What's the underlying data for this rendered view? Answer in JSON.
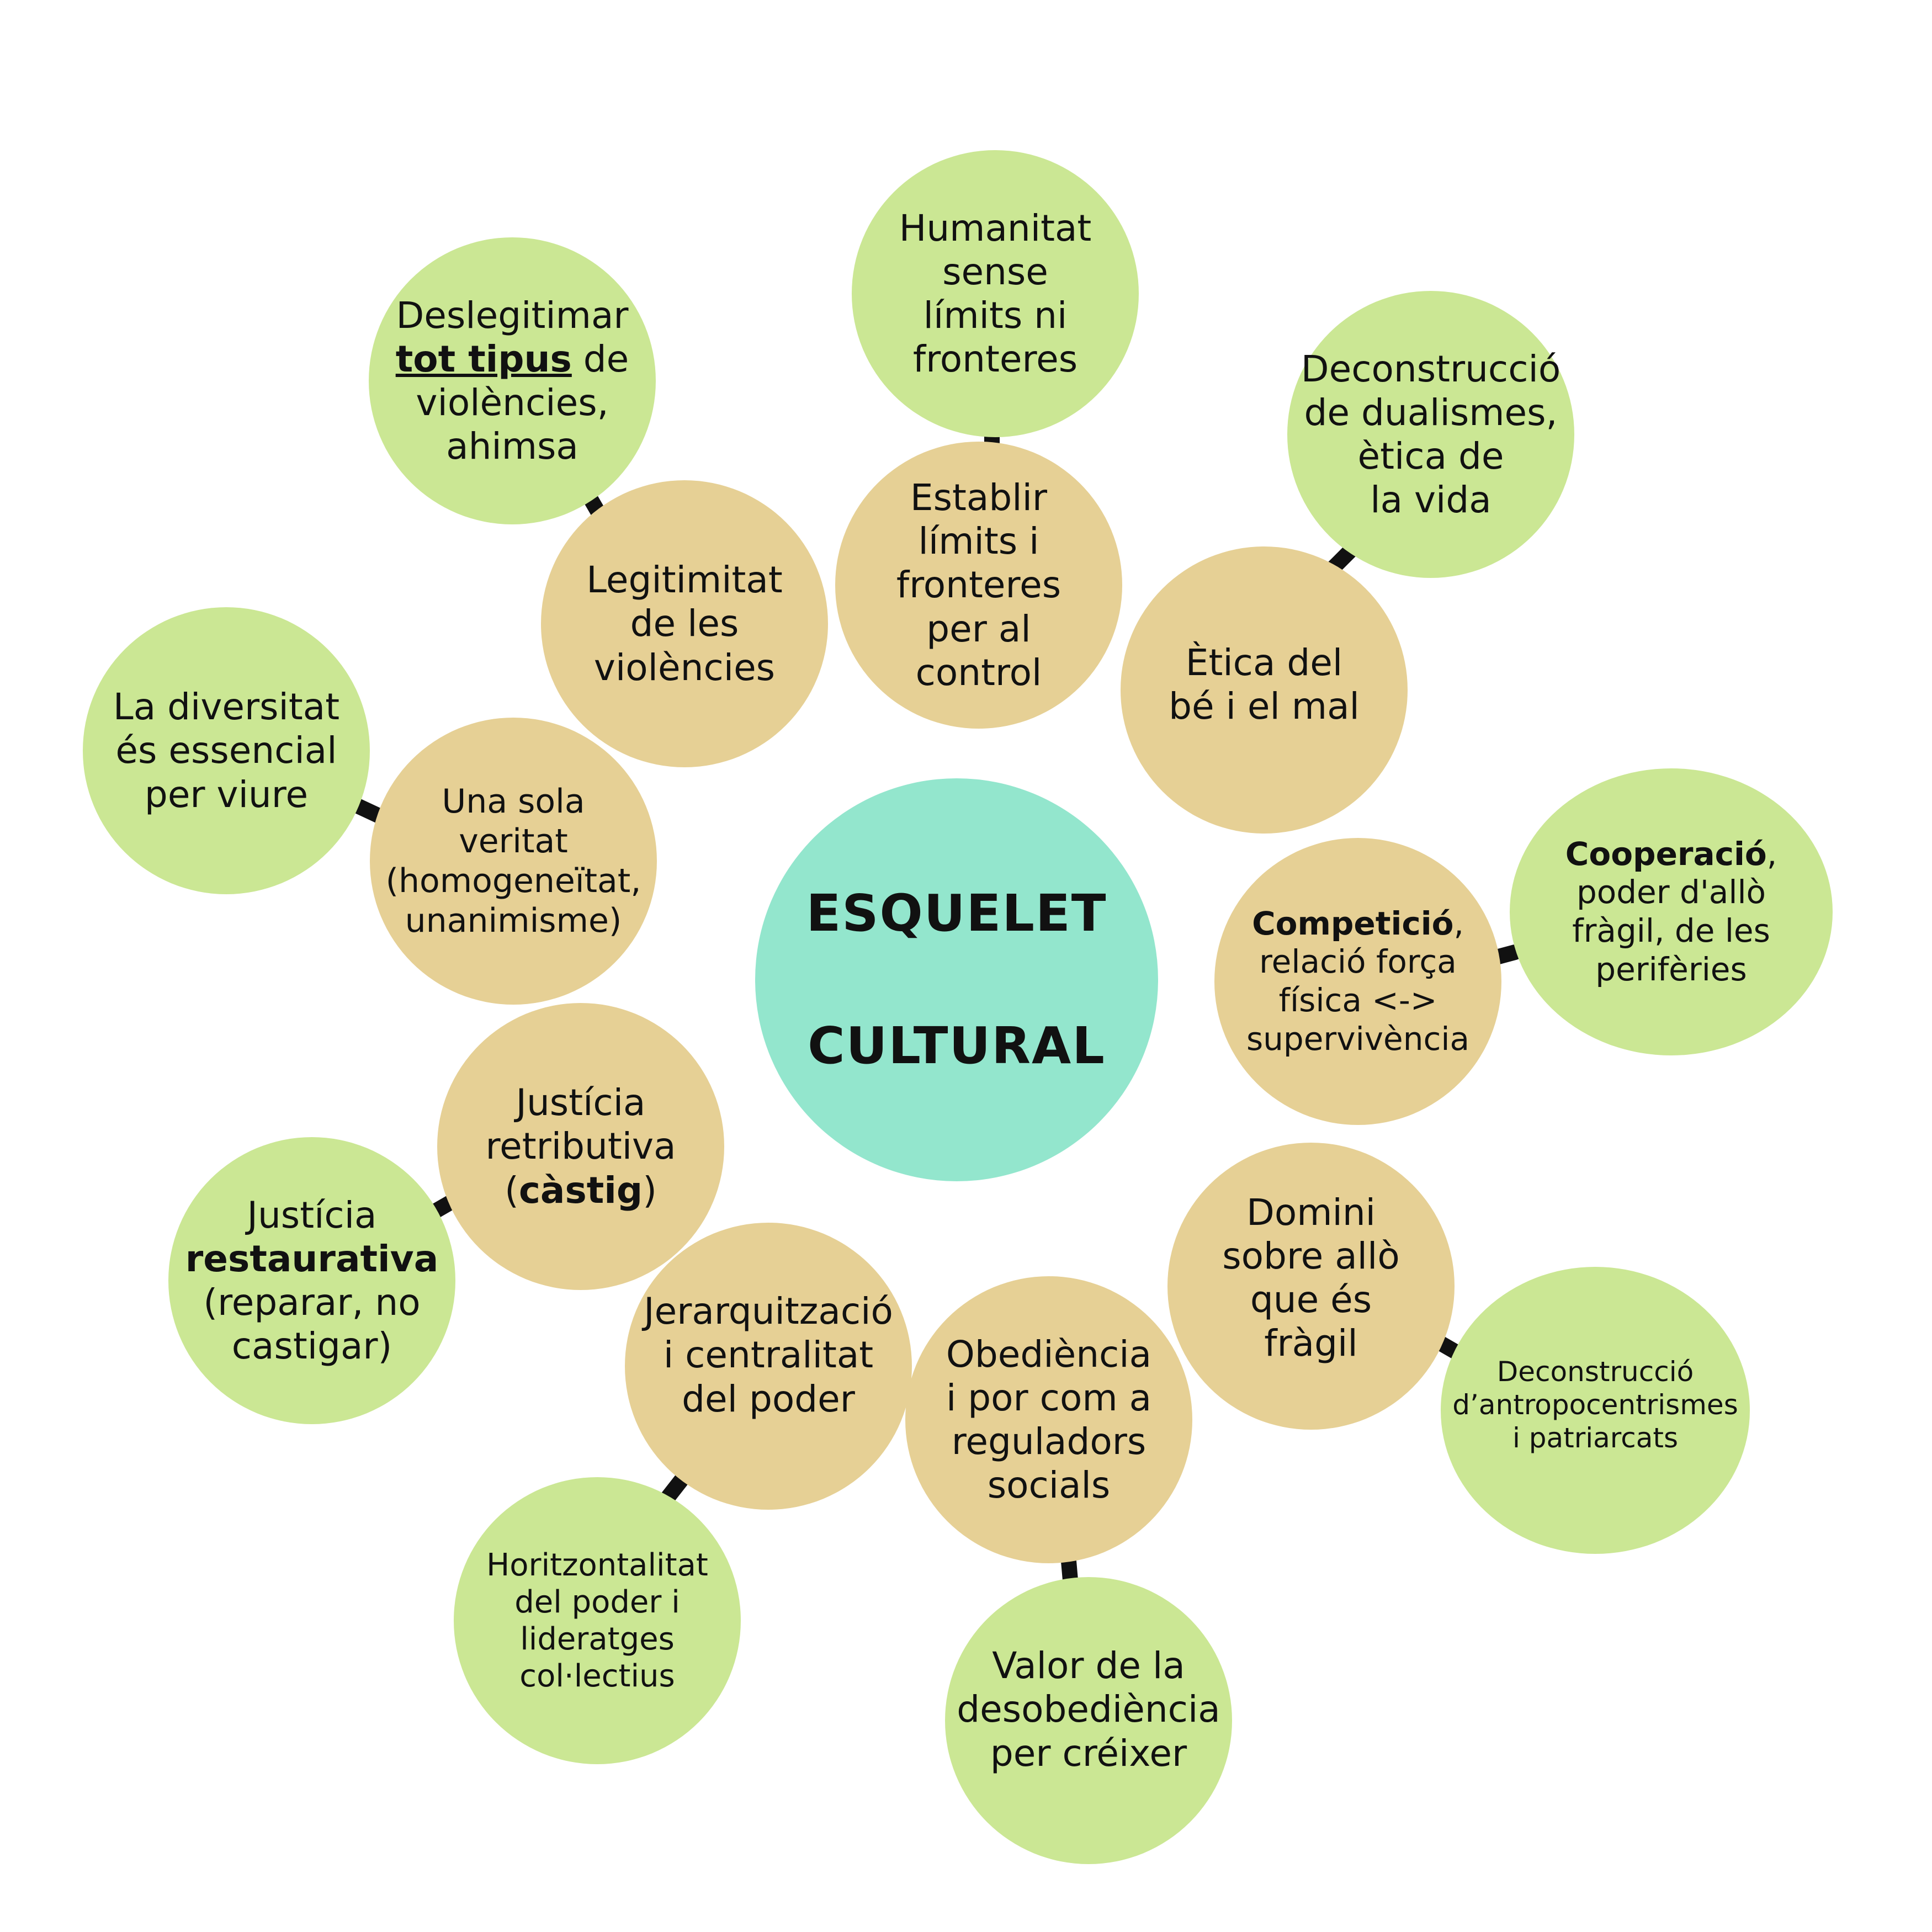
{
  "center": {
    "line1": "ESQUELET",
    "line2": "CULTURAL"
  },
  "nodes": {
    "violencies": {
      "tan": [
        "Legitimitat",
        "de les",
        "violències"
      ],
      "green": {
        "line1": "Deslegitimar",
        "bold": "tot tipus",
        "after": " de",
        "line3": "violències,",
        "line4": "ahimsa"
      }
    },
    "limits": {
      "tan": [
        "Establir",
        "límits i",
        "fronteres",
        "per al",
        "control"
      ],
      "green": [
        "Humanitat",
        "sense",
        "límits ni",
        "fronteres"
      ]
    },
    "etica": {
      "tan": [
        "Ètica del",
        "bé i el mal"
      ],
      "green": [
        "Deconstrucció",
        "de dualismes,",
        "ètica de",
        "la vida"
      ]
    },
    "veritat": {
      "tan": [
        "Una sola",
        "veritat",
        "(homogeneïtat,",
        "unanimisme)"
      ],
      "green": [
        "La diversitat",
        "és essencial",
        "per viure"
      ]
    },
    "competicio": {
      "tan": {
        "bold": "Competició",
        "after": ",",
        "lines": [
          "relació força",
          "física <->",
          "supervivència"
        ]
      },
      "green": {
        "bold": "Cooperació",
        "after": ",",
        "lines": [
          "poder d'allò",
          "fràgil, de les",
          "perifèries"
        ]
      }
    },
    "justicia": {
      "tan": {
        "line1": "Justícia",
        "line2": "retributiva",
        "pre": "(",
        "bold": "càstig",
        "post": ")"
      },
      "green": {
        "line1": "Justícia",
        "bold": "restaurativa",
        "line3": "(reparar, no",
        "line4": "castigar)"
      }
    },
    "domini": {
      "tan": [
        "Domini",
        "sobre allò",
        "que és",
        "fràgil"
      ],
      "green": [
        "Deconstrucció",
        "d’antropocentrismes",
        "i patriarcats"
      ]
    },
    "jerarquia": {
      "tan": [
        "Jerarquització",
        "i centralitat",
        "del poder"
      ],
      "green": [
        "Horitzontalitat",
        "del poder i",
        "lideratges",
        "col·lectius"
      ]
    },
    "obediencia": {
      "tan": [
        "Obediència",
        "i por com a",
        "reguladors",
        "socials"
      ],
      "green": [
        "Valor de la",
        "desobediència",
        "per créixer"
      ]
    }
  },
  "colors": {
    "green": "#cbe794",
    "tan": "#e6d095",
    "center": "#93e6cd",
    "connector": "#111111"
  }
}
